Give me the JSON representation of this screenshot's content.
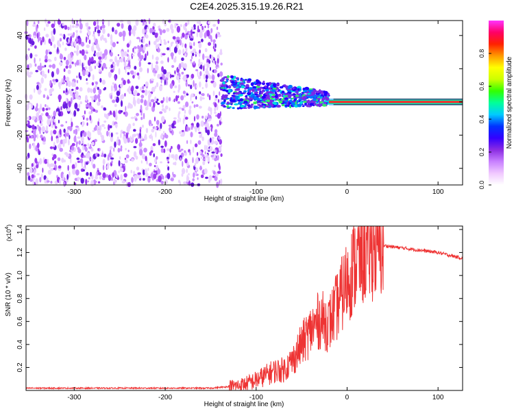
{
  "title": "C2E4.2025.315.19.26.R21",
  "chart_data": [
    {
      "type": "heatmap",
      "name": "spectrogram",
      "title": "C2E4.2025.315.19.26.R21",
      "xlabel": "Height of straight line (km)",
      "ylabel": "Frequency (Hz)",
      "xlim": [
        -353,
        127
      ],
      "ylim": [
        -50,
        49
      ],
      "xticks": [
        -300,
        -200,
        -100,
        0,
        100
      ],
      "xticklabels": [
        "-300",
        "-200",
        "-100",
        "0",
        "100"
      ],
      "yticks": [
        -40,
        -20,
        0,
        20,
        40
      ],
      "yticklabels": [
        "-40",
        "-20",
        "0",
        "20",
        "40"
      ],
      "colorbar": {
        "label": "Normalized spectral amplitude",
        "range": [
          0,
          1
        ],
        "ticks": [
          0.0,
          0.2,
          0.4,
          0.6,
          0.8
        ],
        "ticklabels": [
          "0.0",
          "0.2",
          "0.4",
          "0.6",
          "0.8"
        ],
        "colors": [
          "#ffffff",
          "#f0c8ff",
          "#c880ff",
          "#8a2be2",
          "#3300ff",
          "#0033ff",
          "#00ccff",
          "#00ff99",
          "#33ff00",
          "#ccff00",
          "#ffff00",
          "#ff9900",
          "#ff2200",
          "#ff0066",
          "#ff33ff"
        ]
      },
      "regions": [
        {
          "name": "noise",
          "x": [
            -353,
            -138
          ],
          "f": [
            -50,
            49
          ],
          "level": 0.12
        },
        {
          "name": "ionospheric scatter",
          "x": [
            -138,
            -20
          ],
          "f_center": 2,
          "f_width": 8,
          "level": 0.35
        },
        {
          "name": "carrier",
          "x": [
            -20,
            127
          ],
          "f_center": 0,
          "f_width": 2,
          "level": 0.95
        }
      ]
    },
    {
      "type": "line",
      "name": "snr",
      "xlabel": "Height of straight line (km)",
      "ylabel": "SNR (10 * v/v)",
      "yscale_label": "(x10",
      "yscale_exponent": "4",
      "yscale_suffix": ")",
      "xlim": [
        -353,
        127
      ],
      "ylim": [
        0,
        1.43
      ],
      "xticks": [
        -300,
        -200,
        -100,
        0,
        100
      ],
      "xticklabels": [
        "-300",
        "-200",
        "-100",
        "0",
        "100"
      ],
      "yticks": [
        0.2,
        0.4,
        0.6,
        0.8,
        1.0,
        1.2,
        1.4
      ],
      "yticklabels": [
        "0.2",
        "0.4",
        "0.6",
        "0.8",
        "1.0",
        "1.2",
        "1.4"
      ],
      "color": "#ee3333",
      "series": [
        {
          "name": "SNR",
          "x": [
            -353,
            -300,
            -250,
            -200,
            -150,
            -120,
            -110,
            -100,
            -90,
            -80,
            -70,
            -60,
            -50,
            -40,
            -30,
            -20,
            -10,
            0,
            10,
            20,
            30,
            40,
            50,
            60,
            70,
            80,
            90,
            100,
            110,
            127
          ],
          "y": [
            0.02,
            0.02,
            0.02,
            0.02,
            0.02,
            0.04,
            0.06,
            0.09,
            0.13,
            0.17,
            0.18,
            0.26,
            0.4,
            0.52,
            0.62,
            0.58,
            0.75,
            0.95,
            1.12,
            1.22,
            1.27,
            1.26,
            1.25,
            1.24,
            1.23,
            1.22,
            1.21,
            1.2,
            1.18,
            1.15
          ]
        }
      ]
    }
  ]
}
